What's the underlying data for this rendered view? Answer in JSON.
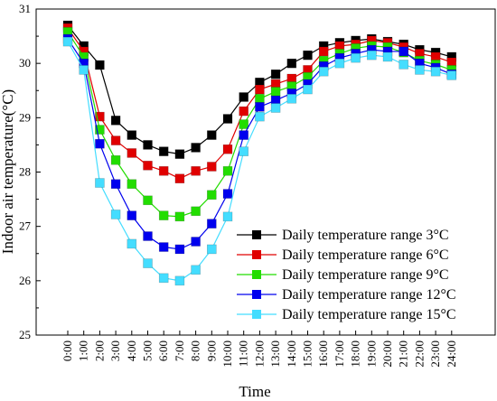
{
  "chart_data": {
    "type": "line",
    "xlabel": "Time",
    "ylabel": "Indoor air temperature(°C)",
    "ylim": [
      25,
      31
    ],
    "yticks": [
      "25",
      "26",
      "27",
      "28",
      "29",
      "30",
      "31"
    ],
    "categories": [
      "0:00",
      "1:00",
      "2:00",
      "3:00",
      "4:00",
      "5:00",
      "6:00",
      "7:00",
      "8:00",
      "9:00",
      "10:00",
      "11:00",
      "12:00",
      "13:00",
      "14:00",
      "15:00",
      "16:00",
      "17:00",
      "18:00",
      "19:00",
      "20:00",
      "21:00",
      "22:00",
      "23:00",
      "24:00"
    ],
    "grid": false,
    "legend_position": "right-center",
    "series": [
      {
        "name": "Daily temperature range 3°C",
        "color": "#000000",
        "values": [
          30.7,
          30.32,
          29.97,
          28.95,
          28.68,
          28.5,
          28.38,
          28.33,
          28.45,
          28.68,
          28.98,
          29.38,
          29.65,
          29.8,
          30.0,
          30.15,
          30.32,
          30.38,
          30.42,
          30.45,
          30.4,
          30.35,
          30.25,
          30.2,
          30.12
        ]
      },
      {
        "name": "Daily temperature range 6°C",
        "color": "#e00000",
        "values": [
          30.65,
          30.22,
          29.02,
          28.58,
          28.35,
          28.12,
          28.02,
          27.88,
          28.02,
          28.1,
          28.42,
          29.12,
          29.52,
          29.62,
          29.72,
          29.88,
          30.22,
          30.32,
          30.35,
          30.42,
          30.38,
          30.3,
          30.18,
          30.12,
          30.02
        ]
      },
      {
        "name": "Daily temperature range 9°C",
        "color": "#22dd00",
        "values": [
          30.58,
          30.12,
          28.78,
          28.22,
          27.78,
          27.48,
          27.2,
          27.18,
          27.28,
          27.58,
          28.02,
          28.88,
          29.35,
          29.48,
          29.58,
          29.75,
          30.05,
          30.18,
          30.28,
          30.32,
          30.3,
          30.2,
          30.05,
          29.98,
          29.88
        ]
      },
      {
        "name": "Daily temperature range 12°C",
        "color": "#0000ee",
        "values": [
          30.45,
          30.0,
          28.52,
          27.78,
          27.2,
          26.82,
          26.62,
          26.58,
          26.72,
          27.05,
          27.6,
          28.68,
          29.2,
          29.32,
          29.45,
          29.62,
          29.95,
          30.1,
          30.18,
          30.25,
          30.22,
          30.22,
          30.0,
          29.92,
          29.8
        ]
      },
      {
        "name": "Daily temperature range 15°C",
        "color": "#44ddff",
        "values": [
          30.4,
          29.88,
          27.8,
          27.22,
          26.68,
          26.32,
          26.05,
          26.0,
          26.2,
          26.58,
          27.18,
          28.38,
          29.02,
          29.18,
          29.35,
          29.52,
          29.85,
          30.0,
          30.1,
          30.15,
          30.12,
          29.98,
          29.88,
          29.85,
          29.78
        ]
      }
    ]
  }
}
